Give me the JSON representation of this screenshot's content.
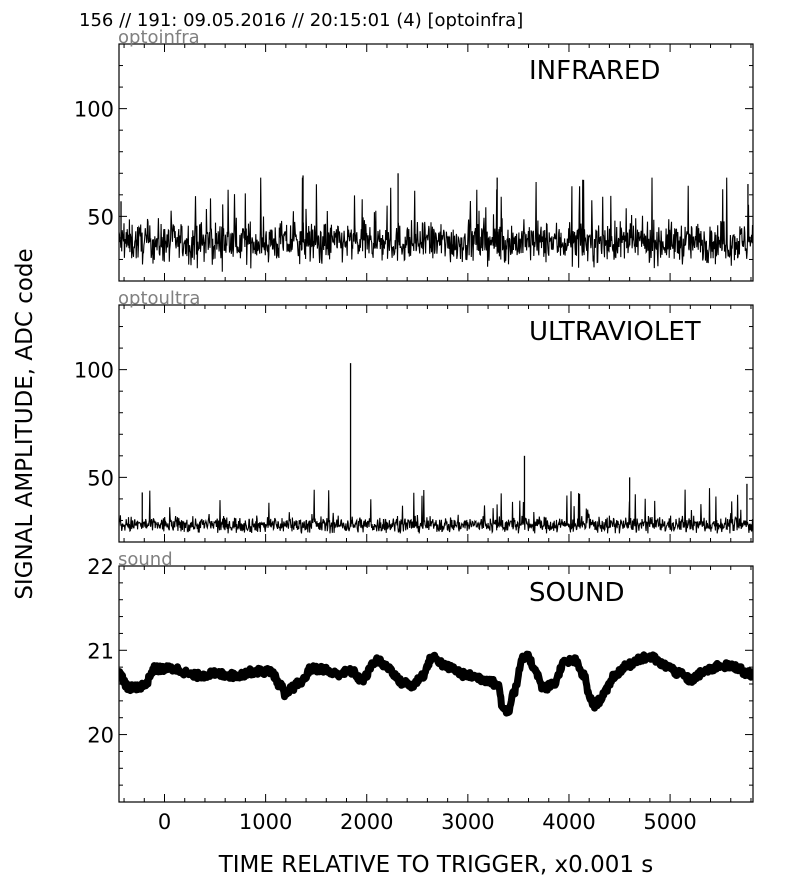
{
  "header": "156 // 191:   09.05.2016 // 20:15:01 (4)  [optoinfra]",
  "ylabel": "SIGNAL AMPLITUDE,  ADC code",
  "xlabel": "TIME RELATIVE TO TRIGGER,   x0.001 s",
  "colors": {
    "line": "#000000",
    "tag": "#808080"
  },
  "chart_data": [
    {
      "type": "line",
      "channel_tag": "optoinfra",
      "title": "INFRARED",
      "xlim": [
        -450,
        5820
      ],
      "ylim": [
        20,
        130
      ],
      "x_ticks": [
        0,
        1000,
        2000,
        3000,
        4000,
        5000
      ],
      "y_ticks": [
        50,
        100
      ],
      "y_tick_labels": [
        "50",
        "100"
      ],
      "noise": {
        "base": 38,
        "spread": 10,
        "min": 23,
        "max": 70
      },
      "spikes": [
        {
          "x": -430,
          "y": 57
        },
        {
          "x": 1370,
          "y": 69
        },
        {
          "x": 2310,
          "y": 70
        },
        {
          "x": 3290,
          "y": 68
        },
        {
          "x": 5770,
          "y": 65
        }
      ]
    },
    {
      "type": "line",
      "channel_tag": "optoultra",
      "title": "ULTRAVIOLET",
      "xlim": [
        -450,
        5820
      ],
      "ylim": [
        20,
        130
      ],
      "x_ticks": [
        0,
        1000,
        2000,
        3000,
        4000,
        5000
      ],
      "y_ticks": [
        50,
        100
      ],
      "y_tick_labels": [
        "50",
        "100"
      ],
      "noise": {
        "base": 28,
        "spread": 4,
        "min": 24,
        "max": 47
      },
      "spikes": [
        {
          "x": -220,
          "y": 43
        },
        {
          "x": 1840,
          "y": 103
        },
        {
          "x": 3560,
          "y": 60
        },
        {
          "x": 4600,
          "y": 50
        },
        {
          "x": 5760,
          "y": 47
        }
      ]
    },
    {
      "type": "line",
      "channel_tag": "sound",
      "title": "SOUND",
      "xlim": [
        -450,
        5820
      ],
      "ylim": [
        19.2,
        22.0
      ],
      "x_ticks": [
        0,
        1000,
        2000,
        3000,
        4000,
        5000
      ],
      "x_tick_labels": [
        "0",
        "1000",
        "2000",
        "3000",
        "4000",
        "5000"
      ],
      "y_ticks": [
        20,
        21,
        22
      ],
      "y_tick_labels": [
        "20",
        "21",
        "22"
      ],
      "band_halfwidth": 0.05,
      "x": [
        -450,
        -350,
        -200,
        -100,
        100,
        300,
        500,
        700,
        900,
        1050,
        1150,
        1200,
        1250,
        1350,
        1450,
        1550,
        1700,
        1850,
        1950,
        2100,
        2200,
        2350,
        2450,
        2550,
        2650,
        2800,
        3000,
        3200,
        3300,
        3350,
        3400,
        3450,
        3550,
        3600,
        3650,
        3750,
        3850,
        3950,
        4050,
        4150,
        4200,
        4250,
        4300,
        4350,
        4450,
        4550,
        4700,
        4800,
        4950,
        5100,
        5200,
        5350,
        5500,
        5650,
        5770
      ],
      "y": [
        20.72,
        20.55,
        20.58,
        20.78,
        20.78,
        20.7,
        20.72,
        20.7,
        20.75,
        20.75,
        20.58,
        20.45,
        20.55,
        20.62,
        20.78,
        20.78,
        20.72,
        20.75,
        20.65,
        20.88,
        20.8,
        20.62,
        20.58,
        20.7,
        20.92,
        20.8,
        20.7,
        20.65,
        20.58,
        20.3,
        20.28,
        20.5,
        20.9,
        20.92,
        20.8,
        20.55,
        20.6,
        20.85,
        20.88,
        20.7,
        20.45,
        20.35,
        20.4,
        20.5,
        20.7,
        20.8,
        20.9,
        20.92,
        20.82,
        20.72,
        20.65,
        20.75,
        20.82,
        20.8,
        20.72
      ]
    }
  ]
}
